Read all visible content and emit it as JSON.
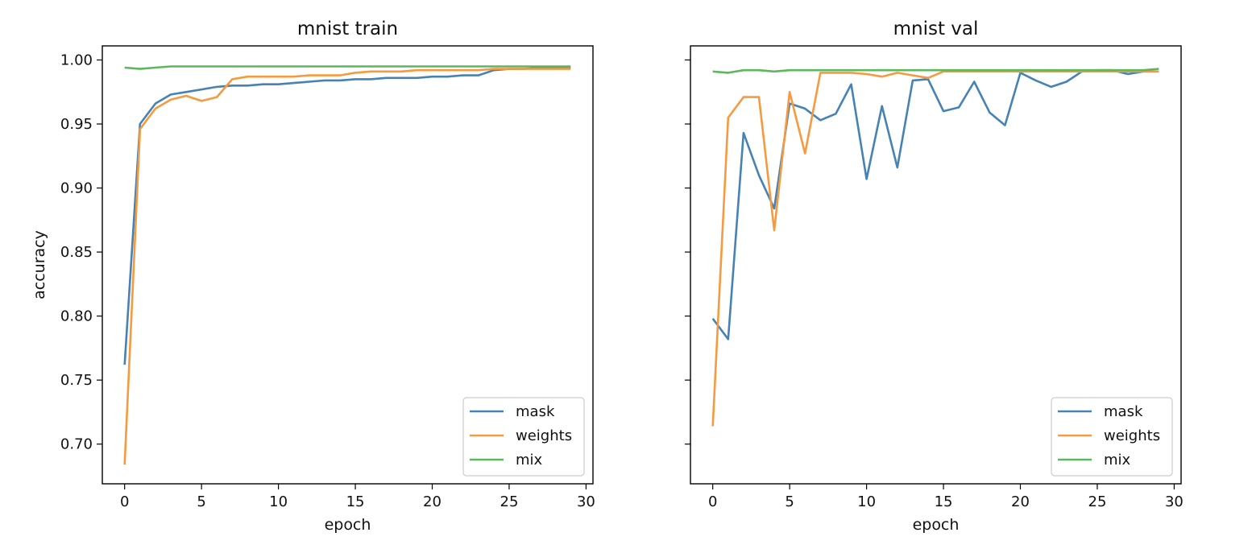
{
  "colors": {
    "mask": "#4682b4",
    "weights": "#f59a3e",
    "mix": "#5cb85c"
  },
  "chart_data": [
    {
      "type": "line",
      "title": "mnist train",
      "xlabel": "epoch",
      "ylabel": "accuracy",
      "xlim": [
        -1.45,
        30.45
      ],
      "ylim": [
        0.669,
        1.011
      ],
      "xticks": [
        0,
        5,
        10,
        15,
        20,
        25,
        30
      ],
      "xtick_labels": [
        "0",
        "5",
        "10",
        "15",
        "20",
        "25",
        "30"
      ],
      "yticks": [
        0.7,
        0.75,
        0.8,
        0.85,
        0.9,
        0.95,
        1.0
      ],
      "ytick_labels": [
        "0.70",
        "0.75",
        "0.80",
        "0.85",
        "0.90",
        "0.95",
        "1.00"
      ],
      "legend_position": "lower-right",
      "legend_labels": [
        "mask",
        "weights",
        "mix"
      ],
      "x": [
        0,
        1,
        2,
        3,
        4,
        5,
        6,
        7,
        8,
        9,
        10,
        11,
        12,
        13,
        14,
        15,
        16,
        17,
        18,
        19,
        20,
        21,
        22,
        23,
        24,
        25,
        26,
        27,
        28,
        29
      ],
      "series": [
        {
          "name": "mask",
          "values": [
            0.762,
            0.95,
            0.966,
            0.973,
            0.975,
            0.977,
            0.979,
            0.98,
            0.98,
            0.981,
            0.981,
            0.982,
            0.983,
            0.984,
            0.984,
            0.985,
            0.985,
            0.986,
            0.986,
            0.986,
            0.987,
            0.987,
            0.988,
            0.988,
            0.992,
            0.993,
            0.993,
            0.994,
            0.994,
            0.994
          ]
        },
        {
          "name": "weights",
          "values": [
            0.684,
            0.946,
            0.962,
            0.969,
            0.972,
            0.968,
            0.971,
            0.985,
            0.987,
            0.987,
            0.987,
            0.987,
            0.988,
            0.988,
            0.988,
            0.99,
            0.991,
            0.991,
            0.991,
            0.992,
            0.992,
            0.992,
            0.992,
            0.992,
            0.993,
            0.993,
            0.993,
            0.993,
            0.993,
            0.993
          ]
        },
        {
          "name": "mix",
          "values": [
            0.994,
            0.993,
            0.994,
            0.995,
            0.995,
            0.995,
            0.995,
            0.995,
            0.995,
            0.995,
            0.995,
            0.995,
            0.995,
            0.995,
            0.995,
            0.995,
            0.995,
            0.995,
            0.995,
            0.995,
            0.995,
            0.995,
            0.995,
            0.995,
            0.995,
            0.995,
            0.995,
            0.995,
            0.995,
            0.995
          ]
        }
      ]
    },
    {
      "type": "line",
      "title": "mnist val",
      "xlabel": "epoch",
      "ylabel": "",
      "xlim": [
        -1.45,
        30.45
      ],
      "ylim": [
        0.669,
        1.011
      ],
      "xticks": [
        0,
        5,
        10,
        15,
        20,
        25,
        30
      ],
      "xtick_labels": [
        "0",
        "5",
        "10",
        "15",
        "20",
        "25",
        "30"
      ],
      "yticks": [
        0.7,
        0.75,
        0.8,
        0.85,
        0.9,
        0.95,
        1.0
      ],
      "ytick_labels": [],
      "legend_position": "lower-right",
      "legend_labels": [
        "mask",
        "weights",
        "mix"
      ],
      "x": [
        0,
        1,
        2,
        3,
        4,
        5,
        6,
        7,
        8,
        9,
        10,
        11,
        12,
        13,
        14,
        15,
        16,
        17,
        18,
        19,
        20,
        21,
        22,
        23,
        24,
        25,
        26,
        27,
        28,
        29
      ],
      "series": [
        {
          "name": "mask",
          "values": [
            0.798,
            0.782,
            0.943,
            0.91,
            0.884,
            0.966,
            0.962,
            0.953,
            0.958,
            0.981,
            0.907,
            0.964,
            0.916,
            0.984,
            0.985,
            0.96,
            0.963,
            0.983,
            0.959,
            0.949,
            0.99,
            0.984,
            0.979,
            0.983,
            0.991,
            0.992,
            0.992,
            0.989,
            0.991,
            0.991
          ]
        },
        {
          "name": "weights",
          "values": [
            0.714,
            0.955,
            0.971,
            0.971,
            0.867,
            0.975,
            0.927,
            0.99,
            0.99,
            0.99,
            0.989,
            0.987,
            0.99,
            0.988,
            0.986,
            0.991,
            0.991,
            0.991,
            0.991,
            0.991,
            0.991,
            0.991,
            0.991,
            0.991,
            0.991,
            0.991,
            0.991,
            0.991,
            0.991,
            0.991
          ]
        },
        {
          "name": "mix",
          "values": [
            0.991,
            0.99,
            0.992,
            0.992,
            0.991,
            0.992,
            0.992,
            0.992,
            0.992,
            0.992,
            0.992,
            0.992,
            0.992,
            0.992,
            0.992,
            0.992,
            0.992,
            0.992,
            0.992,
            0.992,
            0.992,
            0.992,
            0.992,
            0.992,
            0.992,
            0.992,
            0.992,
            0.992,
            0.992,
            0.993
          ]
        }
      ]
    }
  ]
}
